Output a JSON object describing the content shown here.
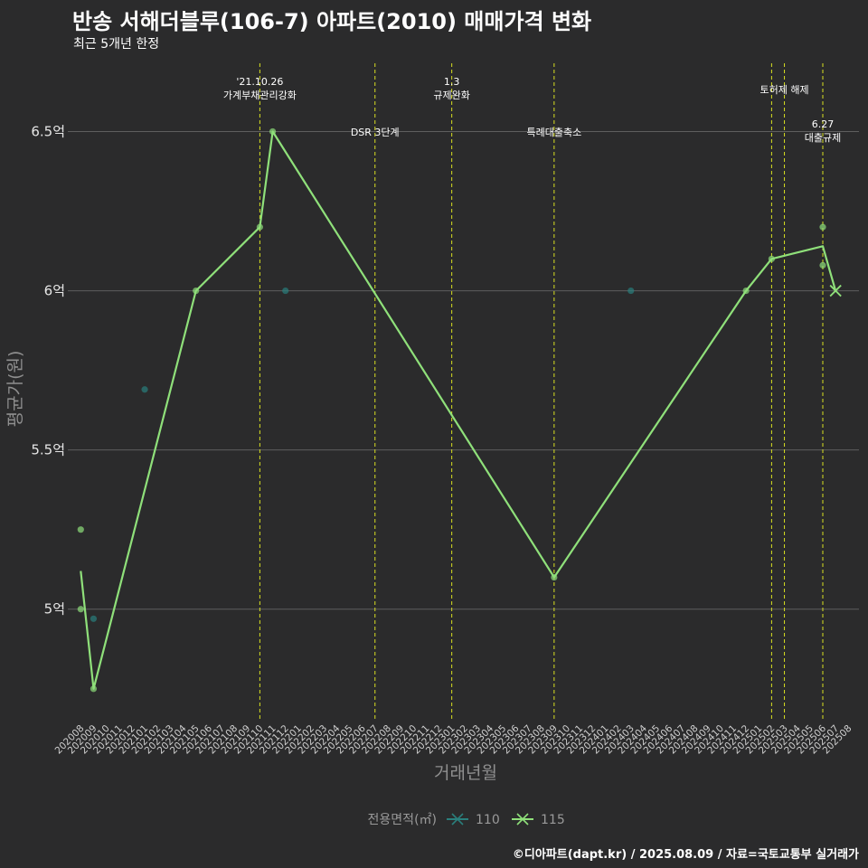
{
  "title": "반송 서해더블루(106-7) 아파트(2010) 매매가격 변화",
  "subtitle": "최근 5개년 한정",
  "caption": "©디아파트(dapt.kr) / 2025.08.09 / 자료=국토교통부 실거래가",
  "colors": {
    "background": "#2b2b2c",
    "grid": "#5e5e5e",
    "vline": "#d9e021",
    "series_110": "#2a7f7c",
    "series_115": "#8fe07a"
  },
  "chart_data": {
    "type": "line",
    "xlabel": "거래년월",
    "ylabel": "평균가(원)",
    "ylim": [
      4.65,
      6.72
    ],
    "y_ticks": [
      {
        "value": 5.0,
        "label": "5억"
      },
      {
        "value": 5.5,
        "label": "5.5억"
      },
      {
        "value": 6.0,
        "label": "6억"
      },
      {
        "value": 6.5,
        "label": "6.5억"
      }
    ],
    "categories": [
      "202008",
      "202009",
      "202010",
      "202011",
      "202012",
      "202101",
      "202102",
      "202103",
      "202104",
      "202105",
      "202106",
      "202107",
      "202108",
      "202109",
      "202110",
      "202111",
      "202112",
      "202201",
      "202202",
      "202203",
      "202204",
      "202205",
      "202206",
      "202207",
      "202208",
      "202209",
      "202210",
      "202211",
      "202212",
      "202301",
      "202302",
      "202303",
      "202304",
      "202305",
      "202306",
      "202307",
      "202308",
      "202309",
      "202310",
      "202311",
      "202312",
      "202401",
      "202402",
      "202403",
      "202404",
      "202405",
      "202406",
      "202407",
      "202408",
      "202409",
      "202410",
      "202411",
      "202412",
      "202501",
      "202502",
      "202503",
      "202504",
      "202505",
      "202506",
      "202507",
      "202508"
    ],
    "annotations": [
      {
        "month": "202110",
        "lines": [
          "'21.10.26",
          "가계부채관리강화"
        ],
        "level": "high"
      },
      {
        "month": "202207",
        "lines": [
          "DSR 3단계"
        ],
        "level": "mid"
      },
      {
        "month": "202301",
        "lines": [
          "1.3",
          "규제완화"
        ],
        "level": "high"
      },
      {
        "month": "202309",
        "lines": [
          "특례대출축소"
        ],
        "level": "mid"
      },
      {
        "month": "202502",
        "lines": [],
        "level": "none"
      },
      {
        "month": "202503",
        "lines": [
          "토허제 해제"
        ],
        "level": "top"
      },
      {
        "month": "202506",
        "lines": [
          "6.27",
          "대출규제"
        ],
        "level": "low"
      }
    ],
    "series": [
      {
        "name": "110",
        "color": "#2a7f7c",
        "line": [],
        "points": [
          {
            "month": "202009",
            "value": 4.97
          },
          {
            "month": "202101",
            "value": 5.69
          },
          {
            "month": "202112",
            "value": 6.0
          },
          {
            "month": "202403",
            "value": 6.0
          }
        ]
      },
      {
        "name": "115",
        "color": "#8fe07a",
        "line": [
          {
            "month": "202008",
            "value": 5.12
          },
          {
            "month": "202009",
            "value": 4.75
          },
          {
            "month": "202105",
            "value": 6.0
          },
          {
            "month": "202110",
            "value": 6.2
          },
          {
            "month": "202111",
            "value": 6.5
          },
          {
            "month": "202309",
            "value": 5.1
          },
          {
            "month": "202412",
            "value": 6.0
          },
          {
            "month": "202502",
            "value": 6.1
          },
          {
            "month": "202506",
            "value": 6.14
          },
          {
            "month": "202507",
            "value": 6.0
          }
        ],
        "points": [
          {
            "month": "202008",
            "value": 5.25
          },
          {
            "month": "202008",
            "value": 5.0
          },
          {
            "month": "202009",
            "value": 4.75
          },
          {
            "month": "202105",
            "value": 6.0
          },
          {
            "month": "202110",
            "value": 6.2
          },
          {
            "month": "202111",
            "value": 6.5
          },
          {
            "month": "202309",
            "value": 5.1
          },
          {
            "month": "202412",
            "value": 6.0
          },
          {
            "month": "202502",
            "value": 6.1
          },
          {
            "month": "202506",
            "value": 6.2
          },
          {
            "month": "202506",
            "value": 6.08
          }
        ],
        "last_marker": {
          "month": "202507",
          "value": 6.0
        }
      }
    ],
    "legend": {
      "title": "전용면적(㎡)",
      "items": [
        {
          "label": "110",
          "color": "#2a7f7c"
        },
        {
          "label": "115",
          "color": "#8fe07a"
        }
      ],
      "position": "bottom"
    }
  }
}
